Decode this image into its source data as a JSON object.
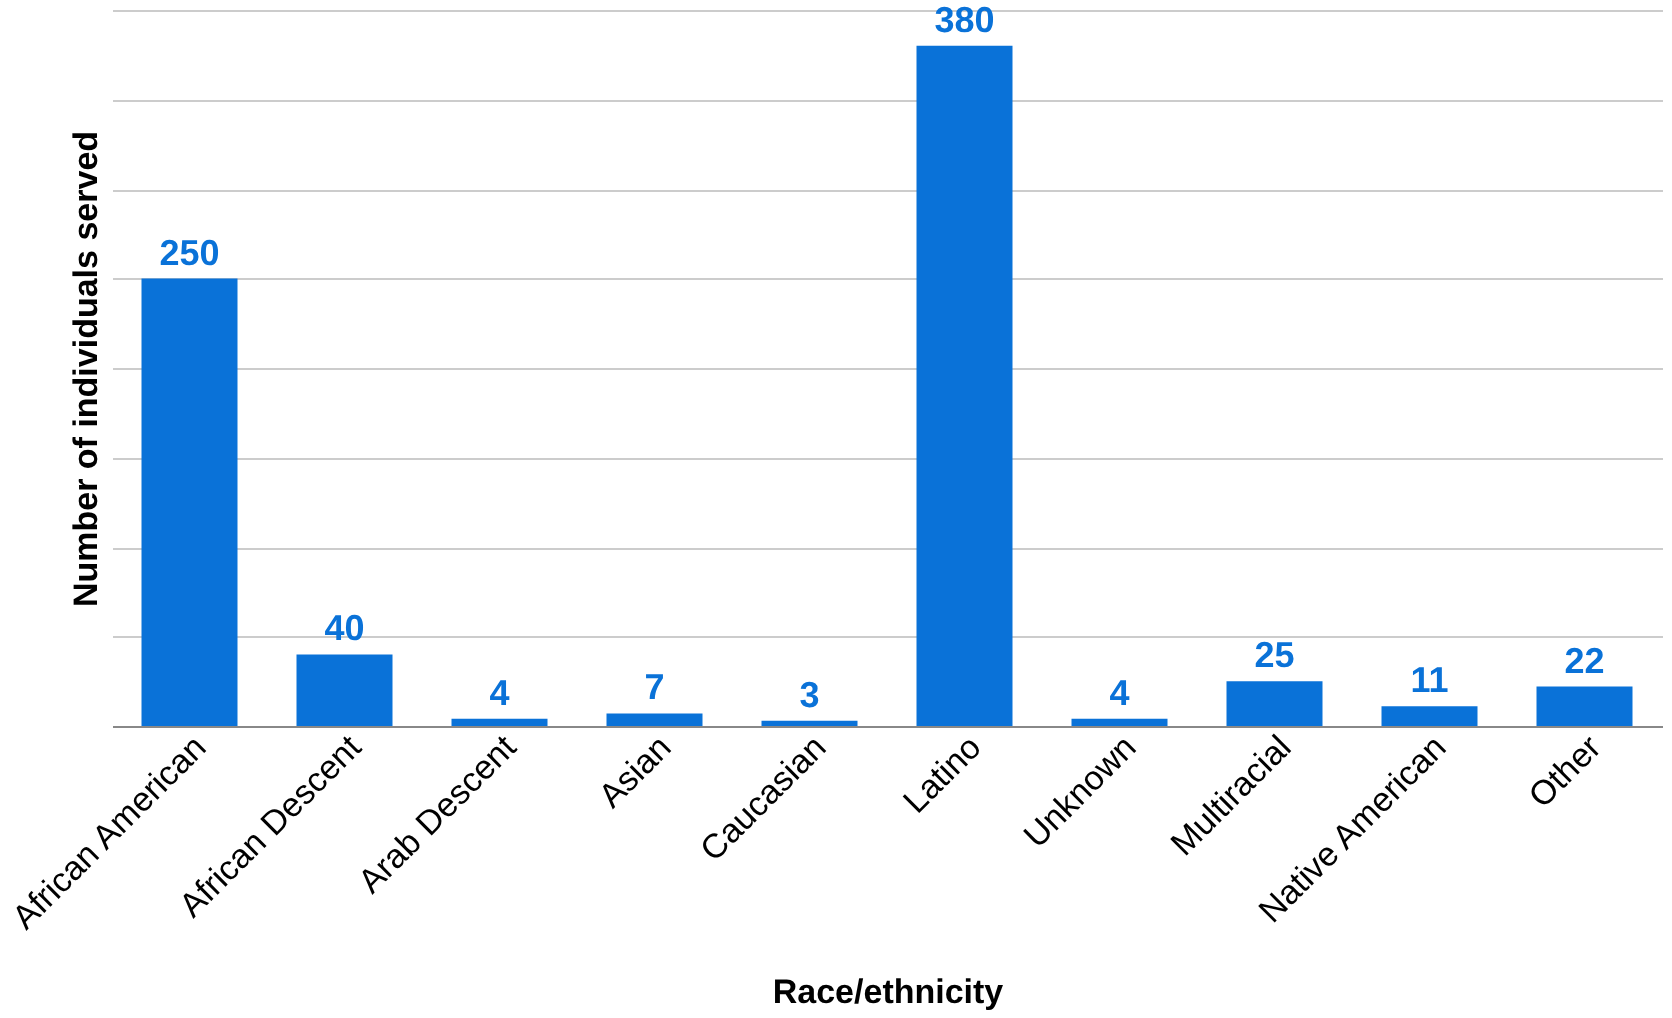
{
  "chart_data": {
    "type": "bar",
    "xlabel": "Race/ethnicity",
    "ylabel": "Number of individuals served",
    "categories": [
      "African American",
      "African Descent",
      "Arab Descent",
      "Asian",
      "Caucasian",
      "Latino",
      "Unknown",
      "Multiracial",
      "Native American",
      "Other"
    ],
    "values": [
      250,
      40,
      4,
      7,
      3,
      380,
      4,
      25,
      11,
      22
    ],
    "color": "#0a72d8",
    "data_labels": true,
    "ylim": [
      0,
      400
    ],
    "yticks": [
      {
        "value": 0,
        "label": null
      },
      {
        "value": 50,
        "label": null
      },
      {
        "value": 100,
        "label": null
      },
      {
        "value": 150,
        "label": null
      },
      {
        "value": 200,
        "label": null
      },
      {
        "value": 250,
        "label": null
      },
      {
        "value": 300,
        "label": null
      },
      {
        "value": 350,
        "label": null
      },
      {
        "value": 400,
        "label": null
      }
    ],
    "grid": "y",
    "tick_labels": "x"
  }
}
